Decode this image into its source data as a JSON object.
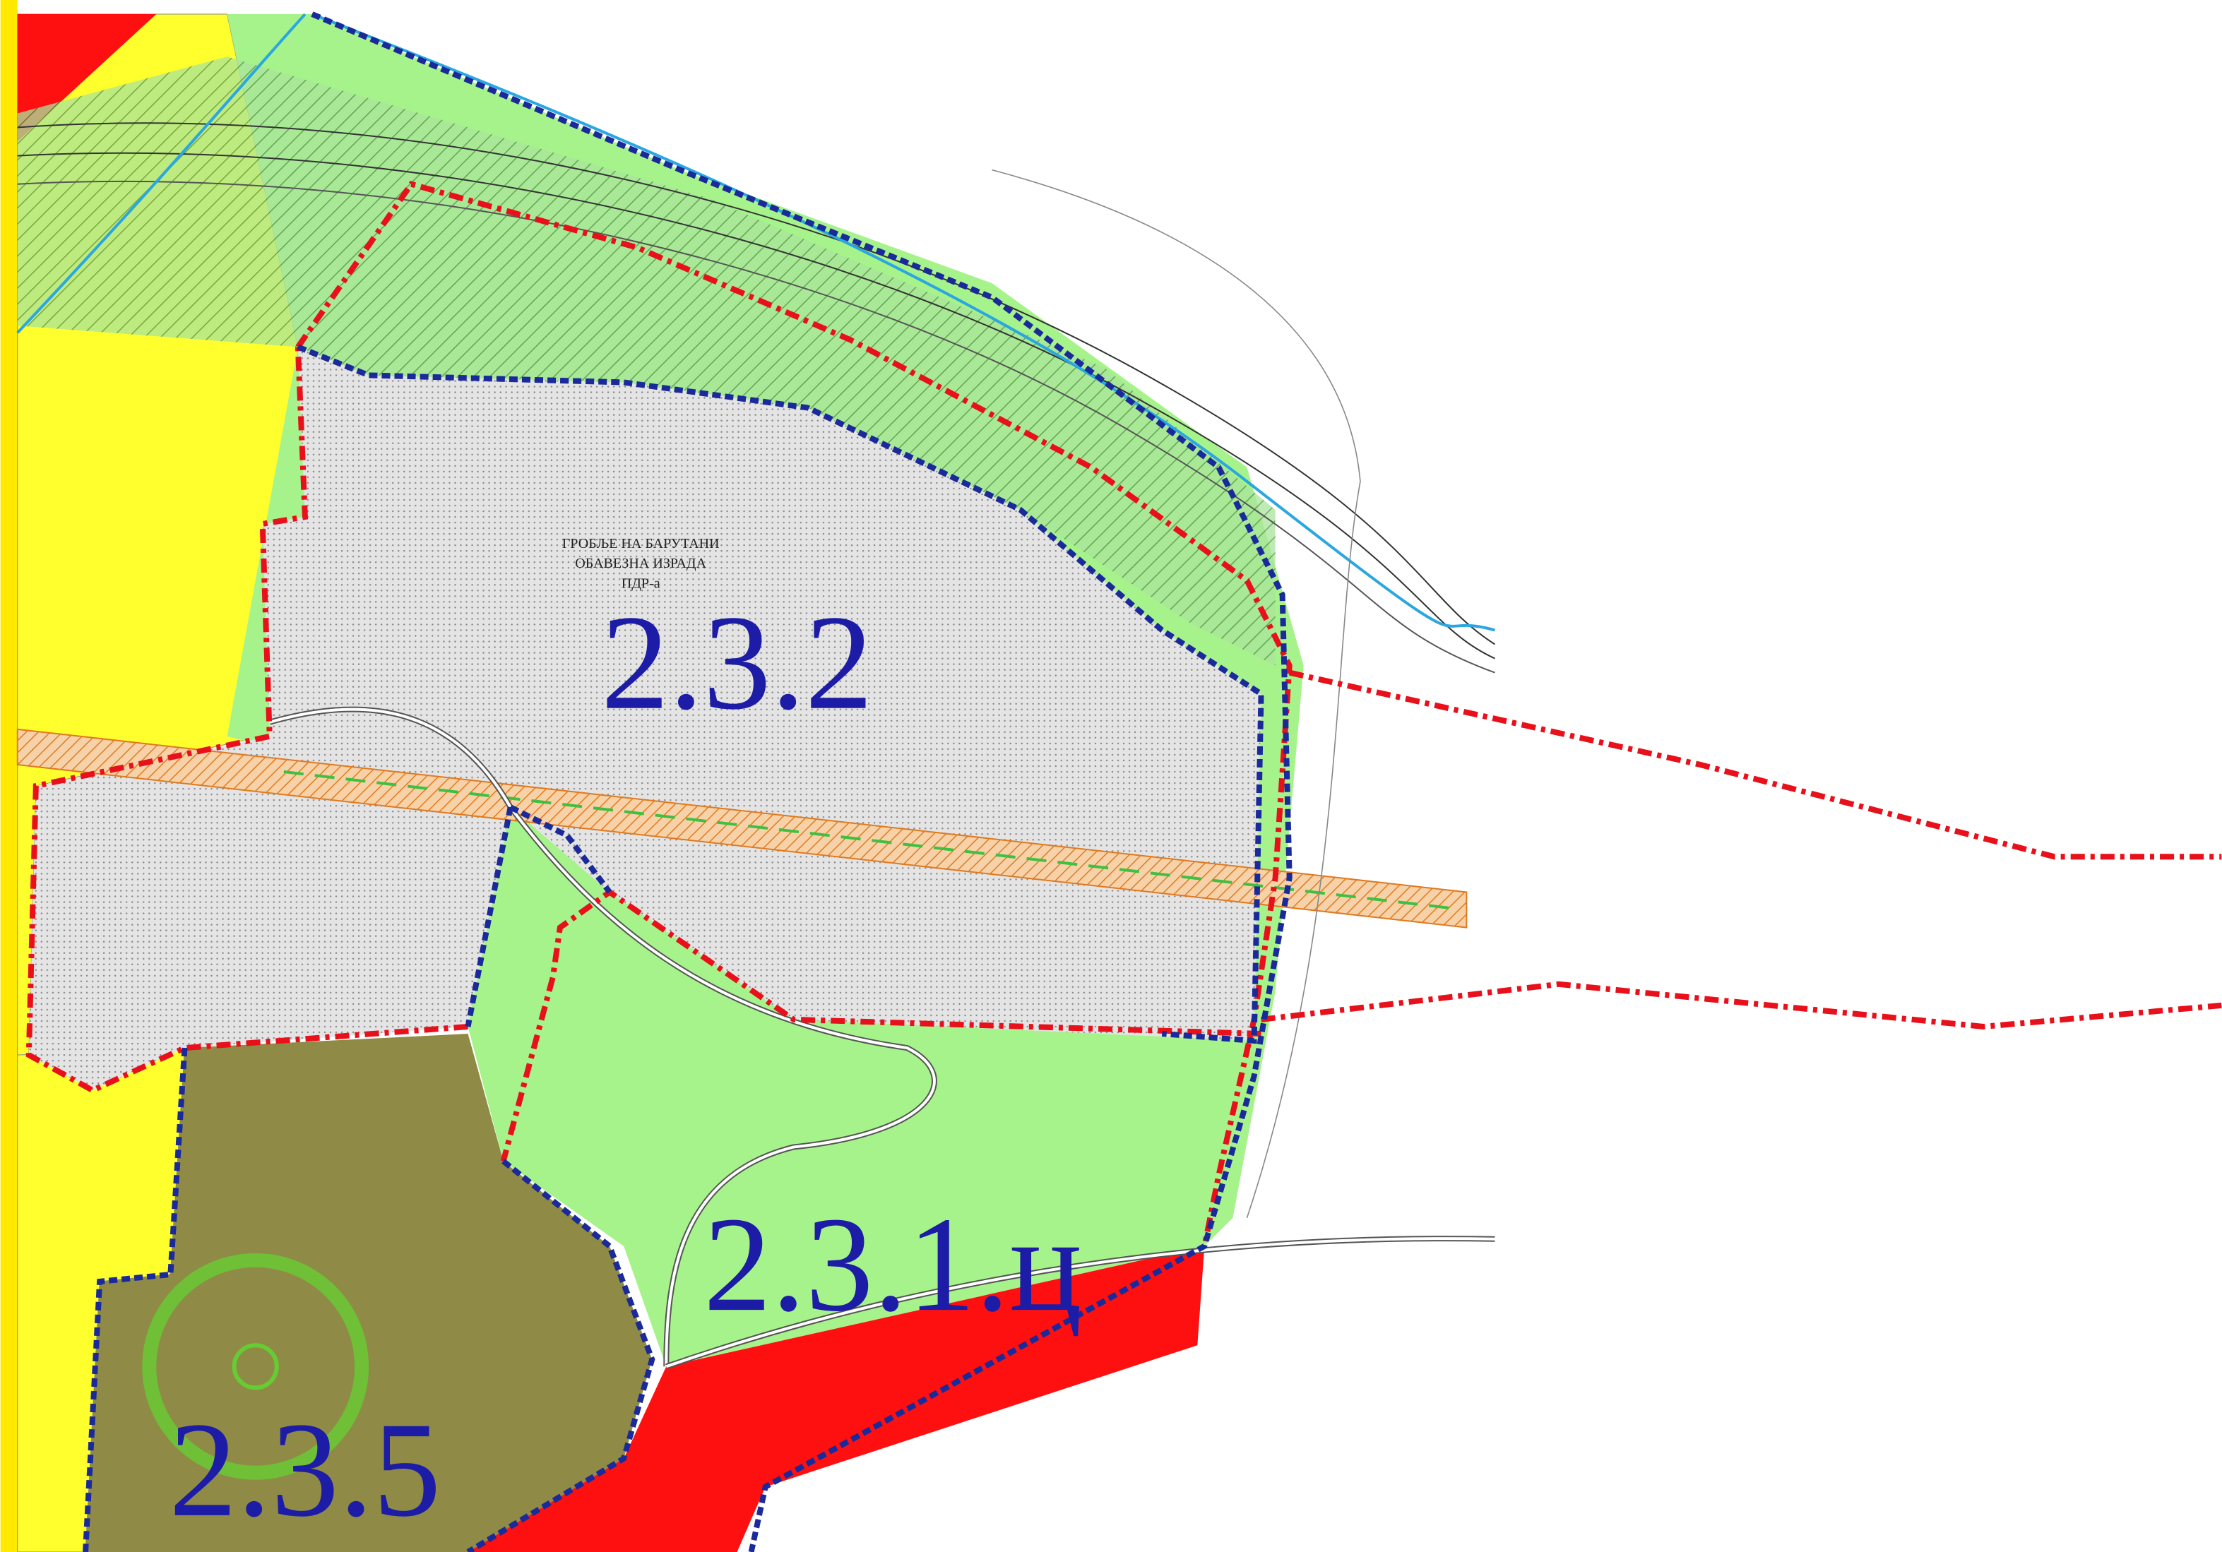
{
  "note": {
    "lines": [
      "ГРОБЉЕ НА БАРУТАНИ",
      "ОБАВЕЗНА ИЗРАДА",
      "ПДР-а"
    ]
  },
  "zones": [
    {
      "label": "2.3.2"
    },
    {
      "label": "2.3.1.ц"
    },
    {
      "label": "2.3.5"
    }
  ]
}
